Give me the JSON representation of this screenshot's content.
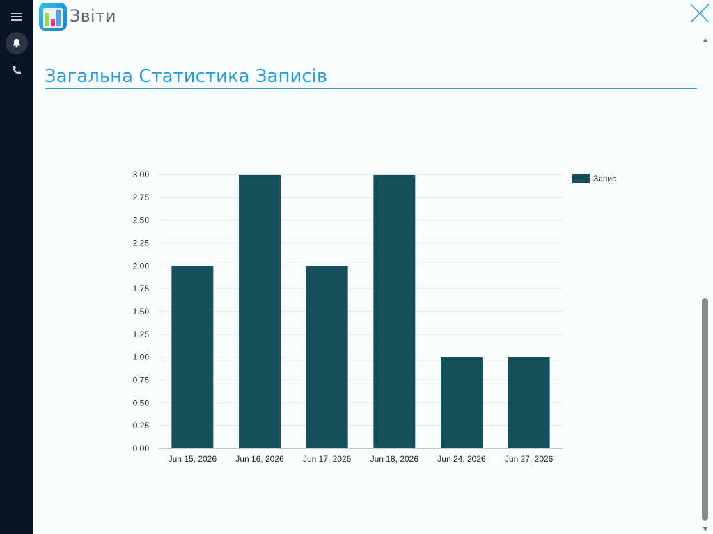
{
  "header": {
    "title": "Звіти"
  },
  "sidebar": {
    "items": [
      {
        "icon": "hamburger-menu-icon"
      },
      {
        "icon": "bell-icon"
      },
      {
        "icon": "phone-icon"
      }
    ]
  },
  "section": {
    "title": "Загальна Статистика Записів"
  },
  "colors": {
    "bar": "#14505c",
    "accent": "#2a9bd6",
    "sidebar": "#081423",
    "grid": "#dcdcdc"
  },
  "chart_data": {
    "type": "bar",
    "title": "",
    "xlabel": "",
    "ylabel": "",
    "categories": [
      "Jun 15, 2026",
      "Jun 16, 2026",
      "Jun 17, 2026",
      "Jun 18, 2026",
      "Jun 24, 2026",
      "Jun 27, 2026"
    ],
    "series": [
      {
        "name": "Запис",
        "values": [
          2,
          3,
          2,
          3,
          1,
          1
        ]
      }
    ],
    "ylim": [
      0,
      3
    ],
    "yticks": [
      "0.00",
      "0.25",
      "0.50",
      "0.75",
      "1.00",
      "1.25",
      "1.50",
      "1.75",
      "2.00",
      "2.25",
      "2.50",
      "2.75",
      "3.00"
    ],
    "grid": true,
    "legend": "top-right"
  }
}
